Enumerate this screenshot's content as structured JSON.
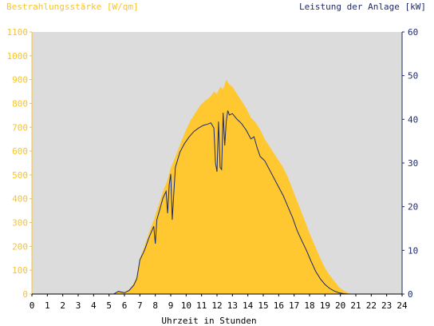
{
  "chart_data": {
    "type": "area",
    "title_left": "Bestrahlungsstärke [W/qm]",
    "title_right": "Leistung der Anlage [kW]",
    "xlabel": "Uhrzeit in Stunden",
    "xlim": [
      0,
      24
    ],
    "x_ticks": [
      "0",
      "1",
      "2",
      "3",
      "4",
      "5",
      "6",
      "7",
      "8",
      "9",
      "10",
      "11",
      "12",
      "13",
      "14",
      "15",
      "16",
      "17",
      "18",
      "19",
      "20",
      "21",
      "22",
      "23",
      "24"
    ],
    "y_left": {
      "lim": [
        0,
        1100
      ],
      "ticks": [
        "0",
        "100",
        "200",
        "300",
        "400",
        "500",
        "600",
        "700",
        "800",
        "900",
        "1000",
        "1100"
      ]
    },
    "y_right": {
      "lim": [
        0,
        60
      ],
      "ticks": [
        "0",
        "10",
        "20",
        "30",
        "40",
        "50",
        "60"
      ]
    },
    "plot_background": "#dcdcdc",
    "colors": {
      "irradiance": "#ffc830",
      "power": "#1a2a6c",
      "left_axis": "#f7c42b",
      "right_axis": "#1f2a6b"
    },
    "series": [
      {
        "axis": "left",
        "kind": "area",
        "x": [
          0,
          5.3,
          5.6,
          6.0,
          6.3,
          6.6,
          6.8,
          7.0,
          7.3,
          7.6,
          7.9,
          8.2,
          8.5,
          8.8,
          9.0,
          9.2,
          9.5,
          9.8,
          10.0,
          10.3,
          10.6,
          10.9,
          11.2,
          11.4,
          11.6,
          11.8,
          12.0,
          12.2,
          12.4,
          12.6,
          12.8,
          13.0,
          13.3,
          13.6,
          13.9,
          14.2,
          14.5,
          14.8,
          15.1,
          15.4,
          15.7,
          16.0,
          16.3,
          16.6,
          16.9,
          17.2,
          17.5,
          17.8,
          18.1,
          18.4,
          18.7,
          19.0,
          19.3,
          19.6,
          19.9,
          20.2,
          20.5,
          20.8,
          24
        ],
        "y": [
          0,
          0,
          12,
          8,
          20,
          45,
          75,
          150,
          200,
          260,
          310,
          370,
          430,
          480,
          530,
          560,
          610,
          660,
          690,
          730,
          760,
          790,
          810,
          820,
          830,
          850,
          840,
          870,
          860,
          900,
          880,
          870,
          840,
          810,
          780,
          740,
          720,
          690,
          650,
          620,
          590,
          560,
          530,
          490,
          440,
          390,
          340,
          290,
          240,
          195,
          150,
          110,
          80,
          55,
          30,
          15,
          5,
          0,
          0
        ]
      },
      {
        "axis": "right",
        "kind": "line",
        "x": [
          0,
          5.3,
          5.6,
          6.0,
          6.3,
          6.6,
          6.8,
          7.0,
          7.3,
          7.6,
          7.9,
          8.0,
          8.1,
          8.3,
          8.5,
          8.7,
          8.8,
          8.9,
          9.0,
          9.1,
          9.3,
          9.6,
          9.9,
          10.2,
          10.5,
          10.8,
          11.1,
          11.4,
          11.6,
          11.8,
          11.9,
          12.0,
          12.1,
          12.2,
          12.3,
          12.4,
          12.5,
          12.6,
          12.7,
          12.8,
          13.0,
          13.3,
          13.6,
          13.9,
          14.2,
          14.4,
          14.6,
          14.8,
          15.1,
          15.4,
          15.7,
          16.0,
          16.3,
          16.6,
          16.9,
          17.2,
          17.5,
          17.8,
          18.1,
          18.4,
          18.7,
          19.0,
          19.3,
          19.6,
          19.9,
          20.2,
          20.5,
          20.8,
          24
        ],
        "y": [
          0,
          0,
          0.6,
          0.3,
          0.8,
          2.0,
          3.5,
          7.8,
          10.0,
          13.0,
          15.5,
          11.5,
          17.0,
          19.5,
          22.0,
          23.5,
          18.5,
          25.0,
          27.5,
          17.0,
          29.0,
          32.5,
          34.5,
          36.0,
          37.2,
          38.0,
          38.6,
          38.9,
          39.2,
          38.0,
          30.0,
          28.0,
          39.5,
          29.0,
          28.5,
          41.5,
          34.0,
          39.5,
          42.0,
          41.0,
          41.3,
          40.0,
          39.0,
          37.5,
          35.5,
          36.0,
          33.5,
          31.5,
          30.5,
          28.5,
          26.5,
          24.5,
          22.5,
          20.0,
          17.5,
          14.5,
          12.2,
          10.0,
          7.5,
          5.2,
          3.5,
          2.2,
          1.3,
          0.7,
          0.3,
          0.1,
          0,
          0,
          0
        ]
      }
    ]
  }
}
